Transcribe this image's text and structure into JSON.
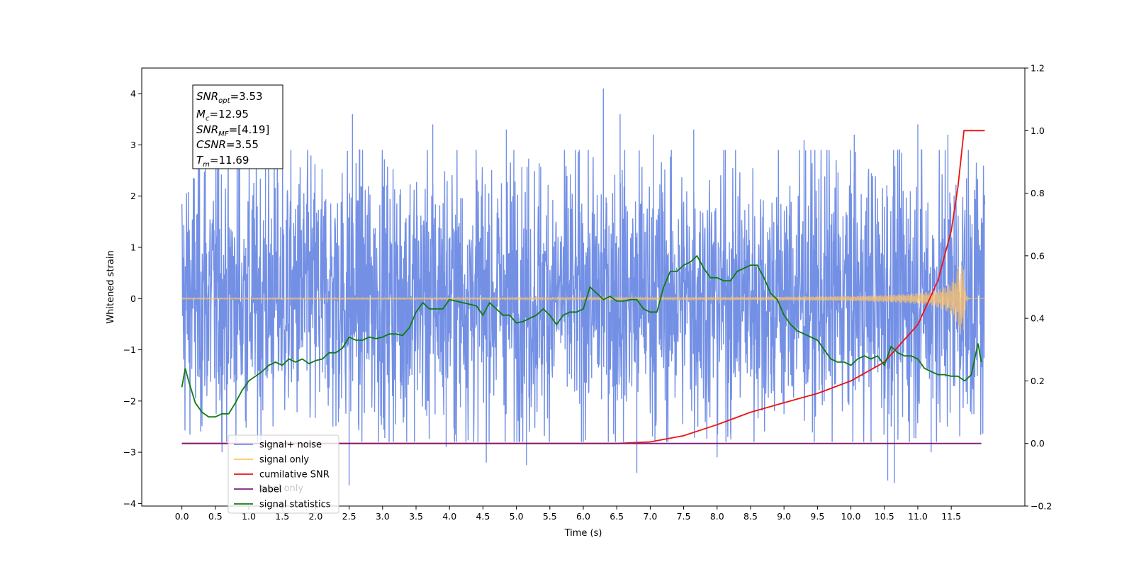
{
  "chart_data": {
    "type": "line",
    "xlabel": "Time (s)",
    "ylabel": "Whitened strain",
    "xlim": [
      -0.6,
      12.6
    ],
    "ylim": [
      -4.05,
      4.5
    ],
    "ylim_right": [
      -0.2,
      1.2
    ],
    "xticks": [
      "0.0",
      "0.5",
      "1.0",
      "1.5",
      "2.0",
      "2.5",
      "3.0",
      "3.5",
      "4.0",
      "4.5",
      "5.0",
      "5.5",
      "6.0",
      "6.5",
      "7.0",
      "7.5",
      "8.0",
      "8.5",
      "9.0",
      "9.5",
      "10.0",
      "10.5",
      "11.0",
      "11.5"
    ],
    "yticks_left": [
      "4",
      "3",
      "2",
      "1",
      "0",
      "−1",
      "−2",
      "−3",
      "−4"
    ],
    "yticks_right": [
      "1.2",
      "1.0",
      "0.8",
      "0.6",
      "0.4",
      "0.2",
      "0.0",
      "−0.2"
    ],
    "annotation": [
      {
        "base": "SNR",
        "sub": "opt",
        "value": "=3.53"
      },
      {
        "base": "M",
        "sub": "c",
        "value": "=12.95"
      },
      {
        "base": "SNR",
        "sub": "MF",
        "value": "=[4.19]"
      },
      {
        "base": "CSNR",
        "sub": "",
        "value": "=3.55"
      },
      {
        "base": "T",
        "sub": "m",
        "value": "=11.69"
      }
    ],
    "legend": {
      "placement": "lower-left",
      "entries": [
        {
          "label": "signal+ noise",
          "color": "#7390e5"
        },
        {
          "label": "signal only",
          "color": "#ffc46a"
        },
        {
          "label": "cumilative SNR",
          "color": "#ee1111"
        },
        {
          "label": "label",
          "color": "#7b1d7b"
        },
        {
          "label": "signal statistics",
          "color": "#107a10"
        }
      ],
      "hidden_label": "label only"
    },
    "series": [
      {
        "name": "signal+ noise",
        "axis": "left",
        "color": "#7390e5",
        "x_start": 0.0,
        "x_end": 12.0,
        "band_low": -2.4,
        "band_high": 2.5,
        "spikes": [
          [
            0.35,
            2.9
          ],
          [
            0.55,
            3.0
          ],
          [
            0.85,
            3.3
          ],
          [
            1.25,
            3.0
          ],
          [
            2.55,
            3.6
          ],
          [
            3.75,
            3.4
          ],
          [
            4.85,
            3.3
          ],
          [
            6.3,
            4.1
          ],
          [
            6.55,
            3.6
          ],
          [
            7.05,
            3.2
          ],
          [
            7.65,
            3.3
          ],
          [
            9.3,
            3.1
          ],
          [
            10.05,
            3.2
          ],
          [
            11.0,
            3.4
          ],
          [
            11.45,
            3.2
          ],
          [
            2.5,
            -3.65
          ],
          [
            4.55,
            -3.2
          ],
          [
            5.15,
            -3.25
          ],
          [
            6.8,
            -3.4
          ],
          [
            10.55,
            -3.55
          ],
          [
            10.65,
            -3.6
          ],
          [
            11.2,
            -3.0
          ],
          [
            0.6,
            -3.0
          ],
          [
            3.95,
            -2.9
          ],
          [
            8.0,
            -3.1
          ]
        ]
      },
      {
        "name": "signal only",
        "axis": "left",
        "color": "#ffc46a",
        "x_start": 0.0,
        "x_end": 12.0,
        "chirp_peak_time": 11.69,
        "chirp_peak_amp": 0.65
      },
      {
        "name": "cumilative SNR",
        "axis": "right",
        "color": "#ee1111",
        "points": [
          [
            0.0,
            0.0
          ],
          [
            6.5,
            0.0
          ],
          [
            7.0,
            0.005
          ],
          [
            7.5,
            0.025
          ],
          [
            8.0,
            0.06
          ],
          [
            8.5,
            0.1
          ],
          [
            9.0,
            0.13
          ],
          [
            9.5,
            0.16
          ],
          [
            10.0,
            0.2
          ],
          [
            10.5,
            0.26
          ],
          [
            11.0,
            0.38
          ],
          [
            11.3,
            0.52
          ],
          [
            11.5,
            0.68
          ],
          [
            11.6,
            0.82
          ],
          [
            11.69,
            1.0
          ],
          [
            12.0,
            1.0
          ]
        ]
      },
      {
        "name": "label",
        "axis": "right",
        "color": "#7b1d7b",
        "points": [
          [
            0.0,
            0.0
          ],
          [
            11.95,
            0.0
          ]
        ]
      },
      {
        "name": "signal statistics",
        "axis": "right",
        "color": "#107a10",
        "points": [
          [
            0.0,
            0.18
          ],
          [
            0.05,
            0.24
          ],
          [
            0.1,
            0.2
          ],
          [
            0.2,
            0.13
          ],
          [
            0.3,
            0.1
          ],
          [
            0.4,
            0.085
          ],
          [
            0.5,
            0.085
          ],
          [
            0.6,
            0.095
          ],
          [
            0.7,
            0.095
          ],
          [
            0.8,
            0.13
          ],
          [
            0.9,
            0.17
          ],
          [
            1.0,
            0.2
          ],
          [
            1.2,
            0.23
          ],
          [
            1.3,
            0.25
          ],
          [
            1.4,
            0.26
          ],
          [
            1.5,
            0.25
          ],
          [
            1.6,
            0.27
          ],
          [
            1.7,
            0.26
          ],
          [
            1.8,
            0.27
          ],
          [
            1.9,
            0.255
          ],
          [
            2.0,
            0.265
          ],
          [
            2.1,
            0.27
          ],
          [
            2.2,
            0.29
          ],
          [
            2.3,
            0.29
          ],
          [
            2.4,
            0.305
          ],
          [
            2.5,
            0.34
          ],
          [
            2.6,
            0.33
          ],
          [
            2.7,
            0.33
          ],
          [
            2.8,
            0.34
          ],
          [
            2.9,
            0.335
          ],
          [
            3.0,
            0.34
          ],
          [
            3.1,
            0.35
          ],
          [
            3.2,
            0.35
          ],
          [
            3.3,
            0.345
          ],
          [
            3.4,
            0.37
          ],
          [
            3.5,
            0.42
          ],
          [
            3.6,
            0.45
          ],
          [
            3.7,
            0.43
          ],
          [
            3.8,
            0.43
          ],
          [
            3.9,
            0.43
          ],
          [
            4.0,
            0.46
          ],
          [
            4.1,
            0.455
          ],
          [
            4.2,
            0.45
          ],
          [
            4.3,
            0.445
          ],
          [
            4.4,
            0.44
          ],
          [
            4.5,
            0.41
          ],
          [
            4.6,
            0.45
          ],
          [
            4.7,
            0.43
          ],
          [
            4.8,
            0.41
          ],
          [
            4.9,
            0.41
          ],
          [
            5.0,
            0.385
          ],
          [
            5.1,
            0.39
          ],
          [
            5.2,
            0.4
          ],
          [
            5.3,
            0.41
          ],
          [
            5.4,
            0.43
          ],
          [
            5.5,
            0.41
          ],
          [
            5.6,
            0.38
          ],
          [
            5.7,
            0.41
          ],
          [
            5.8,
            0.42
          ],
          [
            5.9,
            0.42
          ],
          [
            6.0,
            0.43
          ],
          [
            6.1,
            0.5
          ],
          [
            6.2,
            0.48
          ],
          [
            6.3,
            0.46
          ],
          [
            6.4,
            0.47
          ],
          [
            6.5,
            0.455
          ],
          [
            6.6,
            0.455
          ],
          [
            6.7,
            0.46
          ],
          [
            6.8,
            0.46
          ],
          [
            6.9,
            0.43
          ],
          [
            7.0,
            0.42
          ],
          [
            7.1,
            0.42
          ],
          [
            7.2,
            0.5
          ],
          [
            7.3,
            0.55
          ],
          [
            7.4,
            0.55
          ],
          [
            7.5,
            0.57
          ],
          [
            7.6,
            0.58
          ],
          [
            7.7,
            0.6
          ],
          [
            7.8,
            0.56
          ],
          [
            7.9,
            0.53
          ],
          [
            8.0,
            0.53
          ],
          [
            8.1,
            0.52
          ],
          [
            8.2,
            0.52
          ],
          [
            8.3,
            0.55
          ],
          [
            8.4,
            0.56
          ],
          [
            8.5,
            0.57
          ],
          [
            8.6,
            0.57
          ],
          [
            8.7,
            0.53
          ],
          [
            8.8,
            0.48
          ],
          [
            8.9,
            0.46
          ],
          [
            9.0,
            0.41
          ],
          [
            9.1,
            0.38
          ],
          [
            9.2,
            0.36
          ],
          [
            9.3,
            0.35
          ],
          [
            9.4,
            0.34
          ],
          [
            9.5,
            0.33
          ],
          [
            9.6,
            0.3
          ],
          [
            9.7,
            0.27
          ],
          [
            9.8,
            0.26
          ],
          [
            9.9,
            0.26
          ],
          [
            10.0,
            0.25
          ],
          [
            10.1,
            0.27
          ],
          [
            10.2,
            0.28
          ],
          [
            10.3,
            0.27
          ],
          [
            10.4,
            0.28
          ],
          [
            10.5,
            0.25
          ],
          [
            10.6,
            0.31
          ],
          [
            10.7,
            0.29
          ],
          [
            10.8,
            0.28
          ],
          [
            10.9,
            0.28
          ],
          [
            11.0,
            0.27
          ],
          [
            11.1,
            0.24
          ],
          [
            11.2,
            0.23
          ],
          [
            11.3,
            0.22
          ],
          [
            11.4,
            0.22
          ],
          [
            11.5,
            0.215
          ],
          [
            11.6,
            0.215
          ],
          [
            11.7,
            0.2
          ],
          [
            11.8,
            0.22
          ],
          [
            11.9,
            0.32
          ],
          [
            11.95,
            0.26
          ]
        ]
      }
    ]
  }
}
